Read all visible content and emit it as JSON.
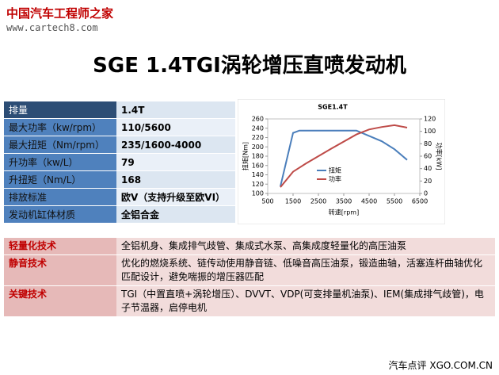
{
  "header": {
    "logo": "中国汽车工程师之家",
    "url": "www.cartech8.com",
    "title": "SGE 1.4TGI涡轮增压直喷发动机"
  },
  "specs": {
    "rows": [
      [
        "排量",
        "1.4T"
      ],
      [
        "最大功率（kw/rpm）",
        "110/5600"
      ],
      [
        "最大扭矩（Nm/rpm）",
        "235/1600-4000"
      ],
      [
        "升功率（kw/L）",
        "79"
      ],
      [
        "升扭矩（Nm/L）",
        "168"
      ],
      [
        "排放标准",
        "欧V（支持升级至欧VI）"
      ],
      [
        "发动机缸体材质",
        "全铝合金"
      ]
    ]
  },
  "chart": {
    "type": "line",
    "title": "SGE1.4T",
    "xlabel": "转速[rpm]",
    "ylabel": "扭矩[Nm]",
    "y2label": "功率[kW]",
    "xlim": [
      500,
      6500
    ],
    "xticks": [
      500,
      1500,
      2500,
      3500,
      4500,
      5500,
      6500
    ],
    "ylim": [
      100,
      260
    ],
    "yticks": [
      100,
      120,
      140,
      160,
      180,
      200,
      220,
      240,
      260
    ],
    "y2lim": [
      0,
      120
    ],
    "y2ticks": [
      0,
      20,
      40,
      60,
      80,
      100,
      120
    ],
    "series": [
      {
        "name": "扭矩",
        "color": "#4a7ebb",
        "x": [
          1000,
          1500,
          1750,
          2500,
          3500,
          4000,
          5000,
          5500,
          6000
        ],
        "values": [
          115,
          230,
          235,
          235,
          235,
          235,
          212,
          195,
          172
        ]
      },
      {
        "name": "功率",
        "color": "#be4b48",
        "axis": "y2",
        "x": [
          1000,
          1500,
          2000,
          3000,
          4000,
          4500,
          5000,
          5500,
          6000
        ],
        "values": [
          10,
          35,
          48,
          72,
          95,
          103,
          107,
          110,
          106
        ]
      }
    ]
  },
  "tech": {
    "rows": [
      [
        "轻量化技术",
        "全铝机身、集成排气歧管、集成式水泵、高集成度轻量化的高压油泵"
      ],
      [
        "静音技术",
        "优化的燃烧系统、链传动使用静音链、低噪音高压油泵，锻造曲轴，活塞连杆曲轴优化匹配设计，避免喘振的增压器匹配"
      ],
      [
        "关键技术",
        "TGI（中置直喷+涡轮增压）、DVVT、VDP(可变排量机油泵)、IEM(集成排气歧管)，电子节温器，启停电机"
      ]
    ]
  },
  "footer": "汽车点评 XGO.COM.CN"
}
